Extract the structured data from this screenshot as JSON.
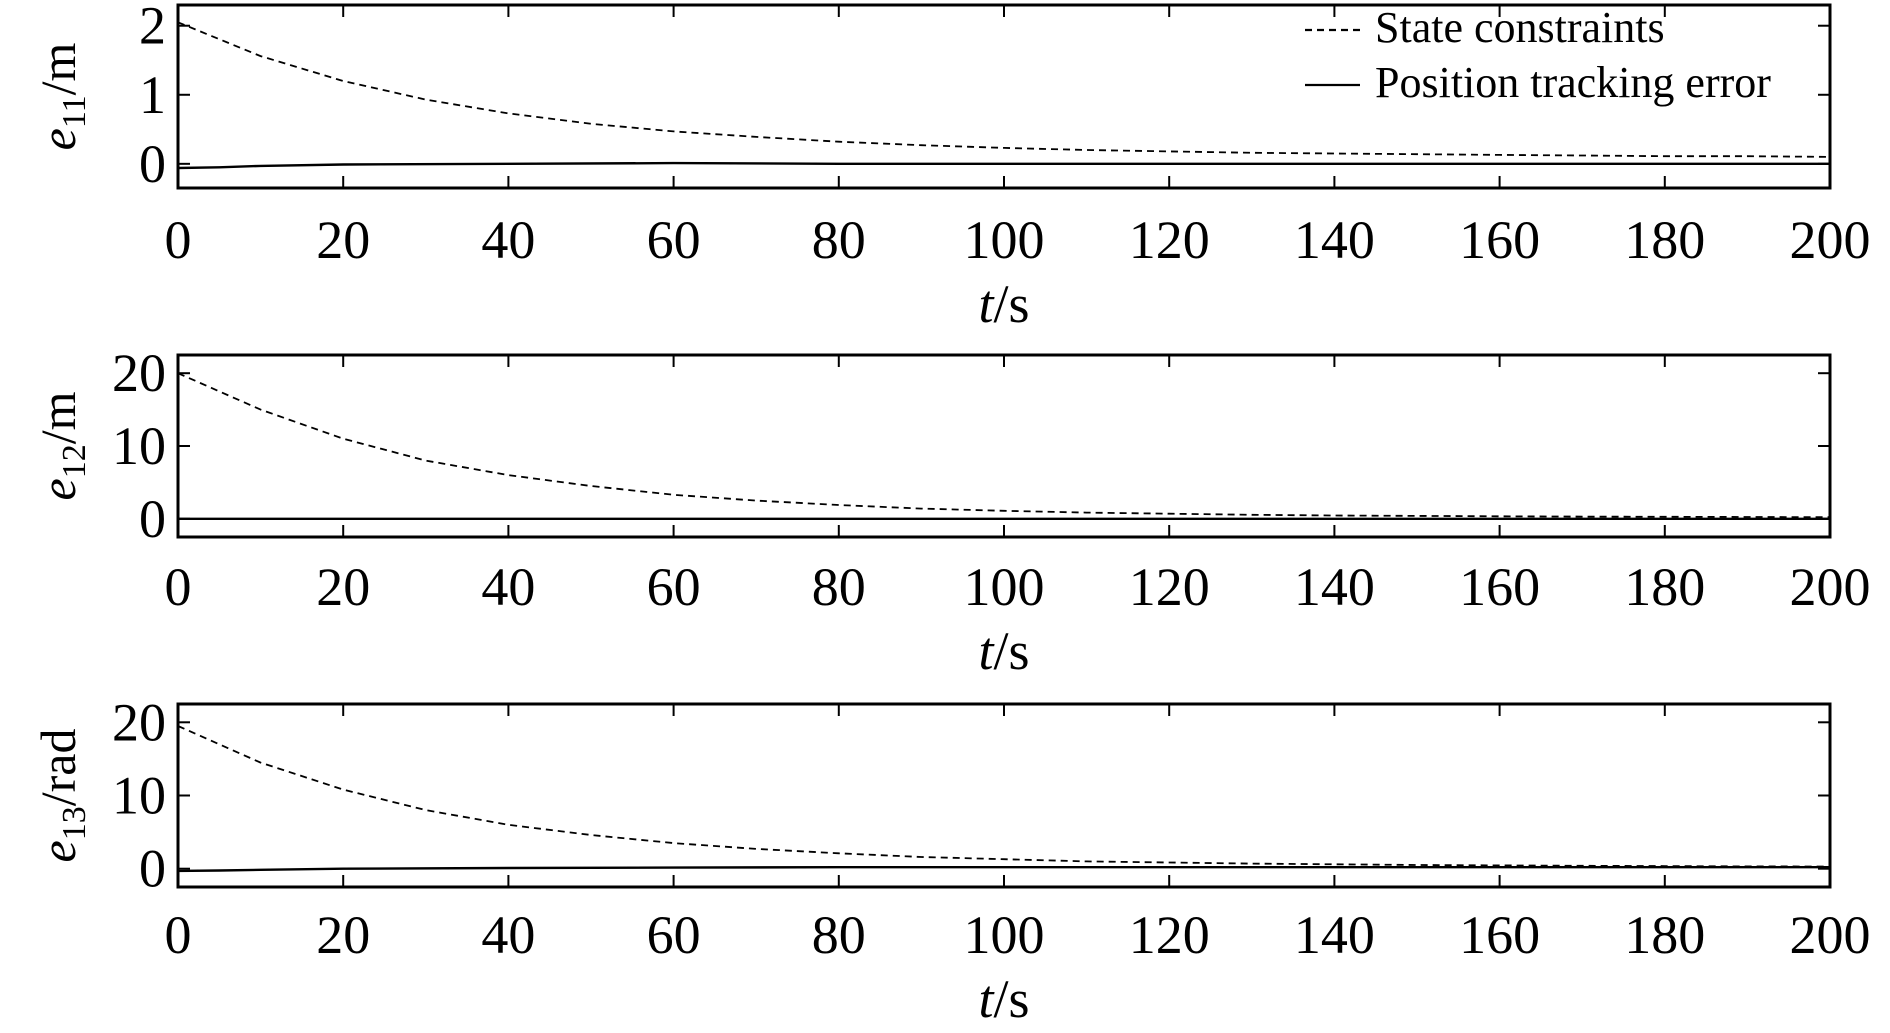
{
  "chart_data": [
    {
      "type": "line",
      "xlabel": {
        "italic": "t",
        "rest": "/s"
      },
      "ylabel": {
        "base": "e",
        "sub": "11",
        "unit": "/m"
      },
      "xlim": [
        0,
        200
      ],
      "ylim": [
        -0.35,
        2.3
      ],
      "xticks": [
        0,
        20,
        40,
        60,
        80,
        100,
        120,
        140,
        160,
        180,
        200
      ],
      "yticks": [
        0,
        1,
        2
      ],
      "legend": {
        "position": "top-right",
        "entries": [
          "State constraints",
          "Position tracking error"
        ]
      },
      "series": [
        {
          "name": "State constraints",
          "style": "dashed",
          "x": [
            0,
            10,
            20,
            30,
            40,
            50,
            60,
            70,
            80,
            90,
            100,
            110,
            120,
            130,
            140,
            150,
            160,
            170,
            180,
            190,
            200
          ],
          "y": [
            2.05,
            1.56,
            1.2,
            0.93,
            0.73,
            0.58,
            0.47,
            0.39,
            0.32,
            0.27,
            0.23,
            0.2,
            0.18,
            0.16,
            0.15,
            0.14,
            0.13,
            0.12,
            0.11,
            0.11,
            0.1
          ]
        },
        {
          "name": "Position tracking error",
          "style": "solid",
          "x": [
            0,
            5,
            10,
            20,
            40,
            60,
            80,
            100,
            120,
            140,
            160,
            180,
            200
          ],
          "y": [
            -0.06,
            -0.05,
            -0.03,
            -0.01,
            0.0,
            0.01,
            0.0,
            0.0,
            0.0,
            0.0,
            0.0,
            0.0,
            0.0
          ]
        }
      ]
    },
    {
      "type": "line",
      "xlabel": {
        "italic": "t",
        "rest": "/s"
      },
      "ylabel": {
        "base": "e",
        "sub": "12",
        "unit": "/m"
      },
      "xlim": [
        0,
        200
      ],
      "ylim": [
        -2.5,
        22.5
      ],
      "xticks": [
        0,
        20,
        40,
        60,
        80,
        100,
        120,
        140,
        160,
        180,
        200
      ],
      "yticks": [
        0,
        10,
        20
      ],
      "series": [
        {
          "name": "State constraints",
          "style": "dashed",
          "x": [
            0,
            10,
            20,
            30,
            40,
            50,
            60,
            70,
            80,
            90,
            100,
            110,
            120,
            130,
            140,
            150,
            160,
            170,
            180,
            190,
            200
          ],
          "y": [
            20.0,
            15.0,
            11.0,
            8.0,
            6.0,
            4.5,
            3.3,
            2.5,
            1.9,
            1.4,
            1.1,
            0.85,
            0.7,
            0.55,
            0.45,
            0.4,
            0.35,
            0.3,
            0.28,
            0.25,
            0.22
          ]
        },
        {
          "name": "Position tracking error",
          "style": "solid",
          "x": [
            0,
            50,
            100,
            150,
            200
          ],
          "y": [
            0.0,
            0.0,
            0.0,
            0.0,
            0.0
          ]
        }
      ]
    },
    {
      "type": "line",
      "xlabel": {
        "italic": "t",
        "rest": "/s"
      },
      "ylabel": {
        "base": "e",
        "sub": "13",
        "unit": "/rad"
      },
      "xlim": [
        0,
        200
      ],
      "ylim": [
        -2.5,
        22.5
      ],
      "xticks": [
        0,
        20,
        40,
        60,
        80,
        100,
        120,
        140,
        160,
        180,
        200
      ],
      "yticks": [
        0,
        10,
        20
      ],
      "series": [
        {
          "name": "State constraints",
          "style": "dashed",
          "x": [
            0,
            10,
            20,
            30,
            40,
            50,
            60,
            70,
            80,
            90,
            100,
            110,
            120,
            130,
            140,
            150,
            160,
            170,
            180,
            190,
            200
          ],
          "y": [
            19.5,
            14.5,
            10.8,
            8.0,
            6.0,
            4.6,
            3.5,
            2.7,
            2.1,
            1.6,
            1.3,
            1.0,
            0.85,
            0.7,
            0.6,
            0.5,
            0.45,
            0.4,
            0.35,
            0.32,
            0.3
          ]
        },
        {
          "name": "Position tracking error",
          "style": "solid",
          "x": [
            0,
            5,
            10,
            20,
            40,
            60,
            80,
            100,
            120,
            140,
            160,
            180,
            200
          ],
          "y": [
            -0.3,
            -0.25,
            -0.15,
            0.0,
            0.1,
            0.15,
            0.2,
            0.2,
            0.2,
            0.2,
            0.2,
            0.2,
            0.2
          ]
        }
      ]
    }
  ]
}
